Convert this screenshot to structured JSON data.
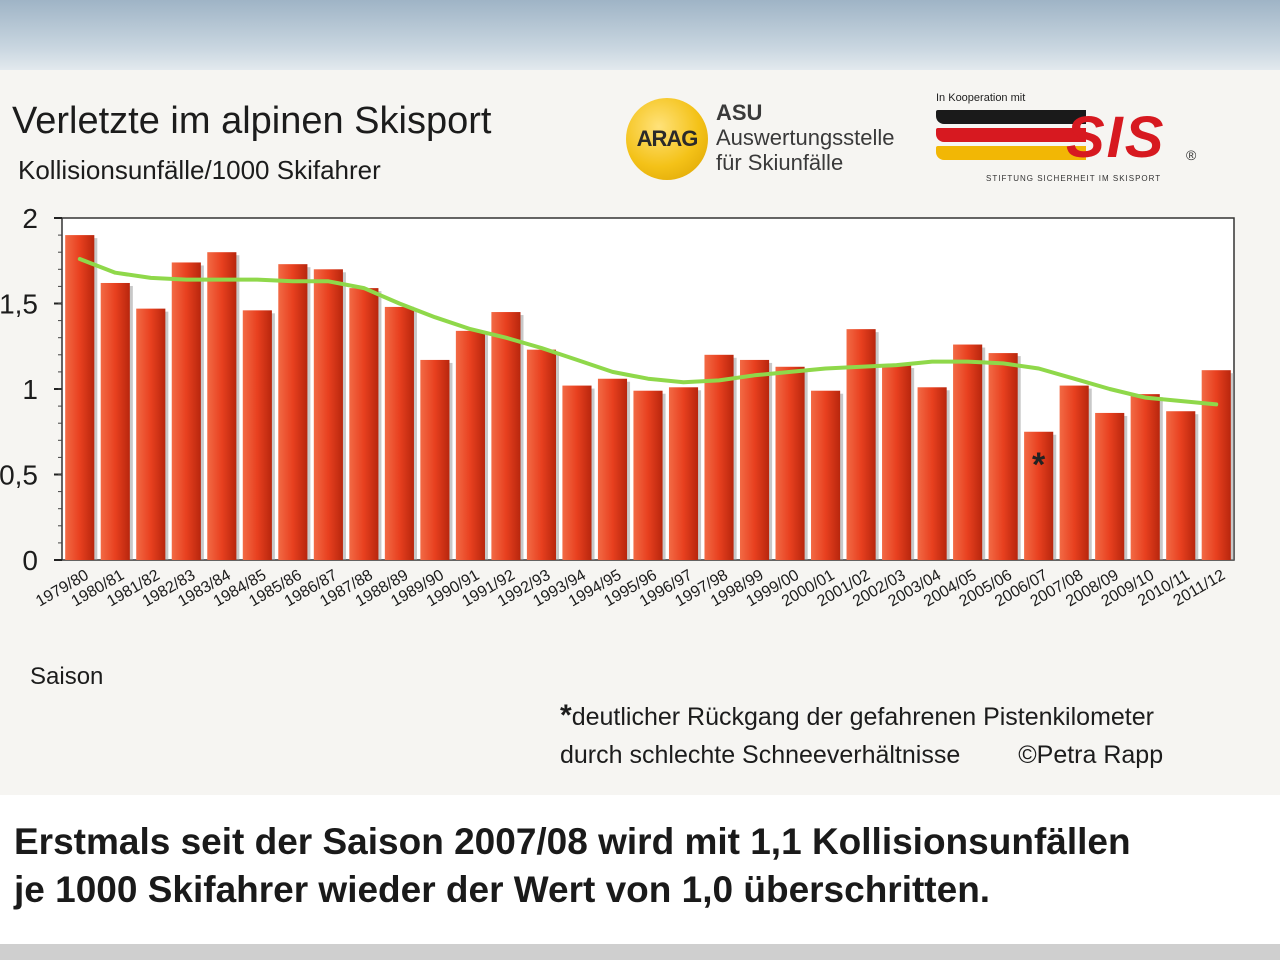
{
  "header": {
    "title": "Verletzte im alpinen Skisport",
    "subtitle": "Kollisionsunfälle/1000 Skifahrer"
  },
  "logos": {
    "arag": "ARAG",
    "asu_head": "ASU",
    "asu_line1": "Auswertungsstelle",
    "asu_line2": "für Skiunfälle",
    "koop": "In Kooperation mit",
    "sis": "SIS",
    "reg": "®",
    "stiftung": "STIFTUNG SICHERHEIT IM SKISPORT"
  },
  "chart_data": {
    "type": "bar",
    "xlabel": "Saison",
    "ylabel": "Kollisionsunfälle/1000 Skifahrer",
    "ylim": [
      0,
      2
    ],
    "yticks": [
      0,
      0.5,
      1,
      1.5,
      2
    ],
    "ytick_labels": [
      "0",
      "0,5",
      "1",
      "1,5",
      "2"
    ],
    "categories": [
      "1979/80",
      "1980/81",
      "1981/82",
      "1982/83",
      "1983/84",
      "1984/85",
      "1985/86",
      "1986/87",
      "1987/88",
      "1988/89",
      "1989/90",
      "1990/91",
      "1991/92",
      "1992/93",
      "1993/94",
      "1994/95",
      "1995/96",
      "1996/97",
      "1997/98",
      "1998/99",
      "1999/00",
      "2000/01",
      "2001/02",
      "2002/03",
      "2003/04",
      "2004/05",
      "2005/06",
      "2006/07",
      "2007/08",
      "2008/09",
      "2009/10",
      "2010/11",
      "2011/12"
    ],
    "series": [
      {
        "values": [
          1.9,
          1.62,
          1.47,
          1.74,
          1.8,
          1.46,
          1.73,
          1.7,
          1.59,
          1.48,
          1.17,
          1.34,
          1.45,
          1.23,
          1.02,
          1.06,
          0.99,
          1.01,
          1.2,
          1.17,
          1.13,
          0.99,
          1.35,
          1.14,
          1.01,
          1.26,
          1.21,
          0.75,
          1.02,
          0.86,
          0.97,
          0.87,
          1.11
        ],
        "color": "#e8401f"
      },
      {
        "type": "line",
        "values": [
          1.76,
          1.68,
          1.65,
          1.64,
          1.64,
          1.64,
          1.63,
          1.63,
          1.59,
          1.5,
          1.42,
          1.35,
          1.3,
          1.24,
          1.17,
          1.1,
          1.06,
          1.04,
          1.05,
          1.08,
          1.1,
          1.12,
          1.13,
          1.14,
          1.16,
          1.16,
          1.15,
          1.12,
          1.06,
          1.0,
          0.95,
          0.93,
          0.91
        ],
        "color": "#8fd84a"
      }
    ],
    "annotations": [
      {
        "category": "2006/07",
        "text": "*"
      }
    ],
    "grid": false
  },
  "footnote": {
    "star": "*",
    "line1": "deutlicher Rückgang der gefahrenen Pistenkilometer",
    "line2": "durch schlechte Schneeverhältnisse",
    "copyright": "©Petra Rapp"
  },
  "caption": {
    "line1": "Erstmals seit der Saison 2007/08 wird mit 1,1 Kollisionsunfällen",
    "line2": "je 1000 Skifahrer wieder der Wert von 1,0 überschritten."
  }
}
